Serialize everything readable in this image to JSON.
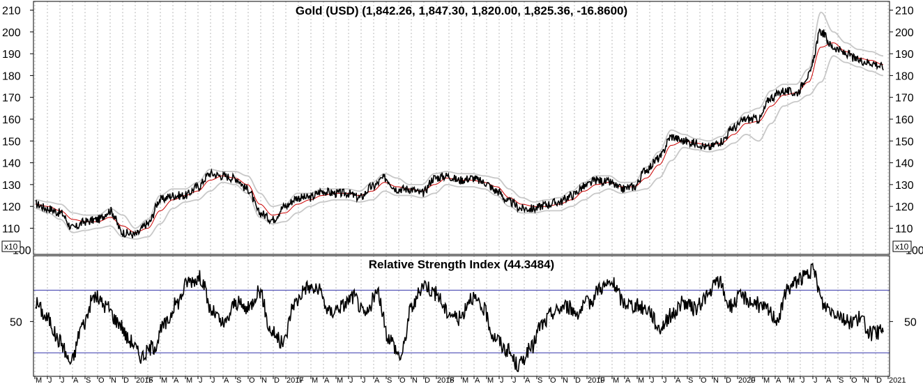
{
  "chart_data": [
    {
      "type": "line",
      "title": "Gold (USD) (1,842.26, 1,847.30, 1,820.00, 1,825.36, -16.8600)",
      "y_unit_badge": "x10",
      "y_ticks": [
        110,
        120,
        130,
        140,
        150,
        160,
        170,
        180,
        190,
        200,
        210
      ],
      "y_edge_label": "100",
      "ylim": [
        98,
        214
      ],
      "grid": "vertical dotted",
      "x": [
        "2015-05",
        "2015-06",
        "2015-07",
        "2015-08",
        "2015-09",
        "2015-10",
        "2015-11",
        "2015-12",
        "2016-01",
        "2016-02",
        "2016-03",
        "2016-04",
        "2016-05",
        "2016-06",
        "2016-07",
        "2016-08",
        "2016-09",
        "2016-10",
        "2016-11",
        "2016-12",
        "2017-01",
        "2017-02",
        "2017-03",
        "2017-04",
        "2017-05",
        "2017-06",
        "2017-07",
        "2017-08",
        "2017-09",
        "2017-10",
        "2017-11",
        "2017-12",
        "2018-01",
        "2018-02",
        "2018-03",
        "2018-04",
        "2018-05",
        "2018-06",
        "2018-07",
        "2018-08",
        "2018-09",
        "2018-10",
        "2018-11",
        "2018-12",
        "2019-01",
        "2019-02",
        "2019-03",
        "2019-04",
        "2019-05",
        "2019-06",
        "2019-07",
        "2019-08",
        "2019-09",
        "2019-10",
        "2019-11",
        "2019-12",
        "2020-01",
        "2020-02",
        "2020-03",
        "2020-04",
        "2020-05",
        "2020-06",
        "2020-07",
        "2020-08",
        "2020-09",
        "2020-10",
        "2020-11",
        "2020-12",
        "2021-01"
      ],
      "series": [
        {
          "role": "price",
          "color": "#000000",
          "values": [
            121,
            119,
            117,
            110,
            113,
            114,
            118,
            108,
            107,
            112,
            123,
            125,
            125,
            129,
            135,
            134,
            133,
            128,
            117,
            114,
            120,
            124,
            124,
            127,
            126,
            126,
            124,
            129,
            133,
            128,
            128,
            126,
            133,
            134,
            132,
            133,
            131,
            127,
            122,
            119,
            119,
            121,
            122,
            125,
            129,
            132,
            131,
            128,
            129,
            137,
            142,
            152,
            150,
            149,
            147,
            150,
            156,
            160,
            160,
            170,
            173,
            172,
            180,
            200,
            193,
            190,
            187,
            186,
            184
          ]
        },
        {
          "role": "moving-average",
          "color": "#cc0000",
          "values": [
            121,
            120,
            118,
            114,
            113,
            113,
            115,
            111,
            108,
            110,
            118,
            123,
            125,
            127,
            132,
            134,
            133,
            130,
            121,
            116,
            117,
            121,
            123,
            125,
            126,
            126,
            125,
            127,
            131,
            129,
            128,
            127,
            130,
            133,
            132,
            132,
            131,
            129,
            124,
            121,
            120,
            120,
            121,
            123,
            127,
            130,
            131,
            129,
            129,
            133,
            139,
            148,
            150,
            149,
            148,
            149,
            153,
            158,
            159,
            166,
            171,
            172,
            177,
            193,
            195,
            191,
            188,
            187,
            185
          ]
        },
        {
          "role": "upper-band",
          "color": "#c8c8c8",
          "values": [
            123,
            122,
            121,
            117,
            116,
            116,
            119,
            116,
            110,
            114,
            125,
            128,
            128,
            131,
            137,
            136,
            136,
            134,
            126,
            120,
            121,
            126,
            126,
            128,
            128,
            128,
            127,
            131,
            135,
            133,
            130,
            130,
            135,
            136,
            135,
            135,
            134,
            133,
            128,
            124,
            122,
            123,
            124,
            127,
            131,
            134,
            134,
            131,
            131,
            138,
            145,
            155,
            153,
            151,
            150,
            152,
            158,
            163,
            165,
            173,
            176,
            176,
            183,
            209,
            200,
            195,
            192,
            191,
            189
          ]
        },
        {
          "role": "lower-band",
          "color": "#c8c8c8",
          "values": [
            119,
            117,
            114,
            108,
            109,
            110,
            111,
            106,
            105,
            106,
            112,
            119,
            122,
            123,
            127,
            131,
            130,
            126,
            115,
            112,
            113,
            117,
            120,
            122,
            123,
            123,
            122,
            123,
            127,
            125,
            125,
            124,
            126,
            130,
            129,
            129,
            128,
            125,
            120,
            117,
            117,
            118,
            118,
            120,
            123,
            126,
            128,
            126,
            127,
            128,
            133,
            141,
            147,
            146,
            145,
            146,
            149,
            153,
            150,
            158,
            166,
            168,
            171,
            177,
            189,
            186,
            184,
            182,
            180
          ]
        }
      ]
    },
    {
      "type": "line",
      "title": "Relative Strength Index (44.3484)",
      "y_ticks": [
        50
      ],
      "ylim": [
        15,
        92
      ],
      "reference_lines": [
        70,
        30
      ],
      "reference_color": "#3333aa",
      "x_month_labels": [
        "M",
        "J",
        "J",
        "A",
        "S",
        "O",
        "N",
        "D",
        "2016",
        "F",
        "M",
        "A",
        "M",
        "J",
        "J",
        "A",
        "S",
        "O",
        "N",
        "D",
        "2017",
        "F",
        "M",
        "A",
        "M",
        "J",
        "J",
        "A",
        "S",
        "O",
        "N",
        "D",
        "2018",
        "F",
        "M",
        "A",
        "M",
        "J",
        "J",
        "A",
        "S",
        "O",
        "N",
        "D",
        "2019",
        "F",
        "M",
        "A",
        "M",
        "J",
        "J",
        "A",
        "S",
        "O",
        "N",
        "D",
        "2020",
        "F",
        "M",
        "A",
        "M",
        "J",
        "J",
        "A",
        "S",
        "O",
        "N",
        "D",
        "2021"
      ],
      "series": [
        {
          "name": "RSI",
          "color": "#000000",
          "values": [
            62,
            52,
            38,
            24,
            48,
            66,
            60,
            50,
            38,
            28,
            34,
            48,
            62,
            76,
            78,
            56,
            48,
            62,
            58,
            70,
            44,
            36,
            62,
            72,
            70,
            56,
            60,
            66,
            54,
            68,
            40,
            28,
            60,
            74,
            68,
            56,
            52,
            66,
            58,
            40,
            32,
            22,
            32,
            48,
            56,
            60,
            56,
            62,
            72,
            74,
            62,
            60,
            58,
            46,
            54,
            62,
            58,
            66,
            76,
            60,
            66,
            62,
            58,
            52,
            72,
            78,
            82,
            60,
            56,
            50,
            52,
            42,
            44
          ]
        }
      ]
    }
  ]
}
